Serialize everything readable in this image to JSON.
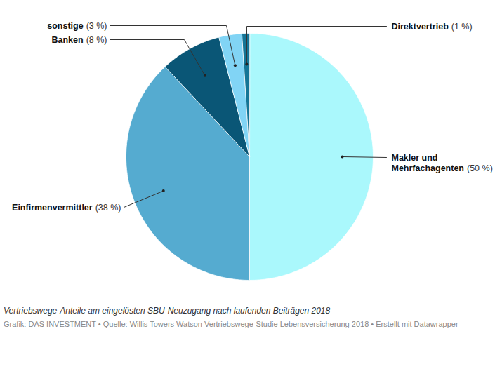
{
  "chart_data": {
    "type": "pie",
    "categories": [
      "Makler und Mehrfachagenten",
      "Einfirmenvermittler",
      "Banken",
      "sonstige",
      "Direktvertrieb"
    ],
    "values": [
      50,
      38,
      8,
      3,
      1
    ],
    "value_labels": [
      "(50 %)",
      "(38 %)",
      "(8 %)",
      "(3 %)",
      "(1 %)"
    ],
    "colors": [
      "#aaf8fc",
      "#55abd0",
      "#0a5676",
      "#81d4f5",
      "#157596"
    ],
    "data_labels": true,
    "caption": "Vertriebswege-Anteile am eingelösten SBU-Neuzugang nach laufenden Beiträgen 2018",
    "source": "Grafik: DAS INVESTMENT • Quelle: Willis Towers Watson Vertriebswege-Studie Lebensversicherung 2018 • Erstellt mit Datawrapper"
  }
}
